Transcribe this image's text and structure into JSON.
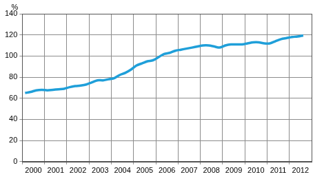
{
  "chart_data": {
    "type": "line",
    "ylabel": "%",
    "color": "#1f9fd9",
    "grid": true,
    "x": [
      2000.125,
      2000.375,
      2000.625,
      2000.875,
      2001.125,
      2001.375,
      2001.625,
      2001.875,
      2002.125,
      2002.375,
      2002.625,
      2002.875,
      2003.125,
      2003.375,
      2003.625,
      2003.875,
      2004.125,
      2004.375,
      2004.625,
      2004.875,
      2005.125,
      2005.375,
      2005.625,
      2005.875,
      2006.125,
      2006.375,
      2006.625,
      2006.875,
      2007.125,
      2007.375,
      2007.625,
      2007.875,
      2008.125,
      2008.375,
      2008.625,
      2008.875,
      2009.125,
      2009.375,
      2009.625,
      2009.875,
      2010.125,
      2010.375,
      2010.625,
      2010.875,
      2011.125,
      2011.375,
      2011.625,
      2011.875,
      2012.125,
      2012.375,
      2012.625
    ],
    "values": [
      65,
      66,
      67.5,
      68,
      67.5,
      68,
      68.5,
      69,
      70.5,
      71.5,
      72,
      73,
      75,
      77,
      77,
      78,
      79,
      82,
      84,
      87,
      91,
      93,
      95,
      96,
      99,
      102,
      103,
      105,
      106,
      107,
      108,
      109,
      110,
      110,
      109,
      108,
      110,
      111,
      111,
      111,
      112,
      113,
      113,
      112,
      112,
      114,
      116,
      117,
      118,
      118.5,
      119.5
    ],
    "xlim": [
      2000,
      2013
    ],
    "xticks": [
      2000,
      2001,
      2002,
      2003,
      2004,
      2005,
      2006,
      2007,
      2008,
      2009,
      2010,
      2011,
      2012
    ],
    "ylim": [
      0,
      140
    ],
    "yticks": [
      0,
      20,
      40,
      60,
      80,
      100,
      120,
      140
    ]
  }
}
